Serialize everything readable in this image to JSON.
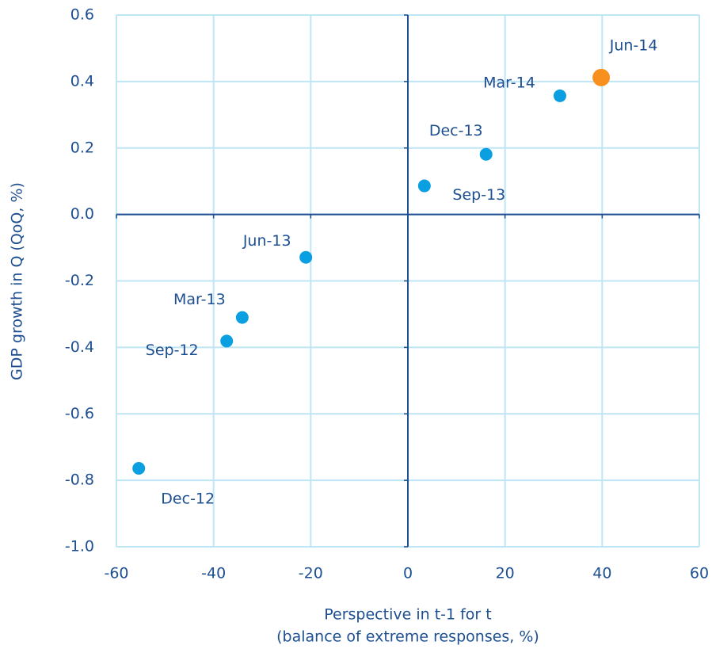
{
  "chart_data": {
    "type": "scatter",
    "x_label": [
      "Perspective in t-1 for t",
      "(balance of extreme responses, %)"
    ],
    "y_label": "GDP growth in Q (QoQ, %)",
    "points": [
      {
        "label": "Dec-12",
        "x": -55.4,
        "y": -0.764,
        "color": "#0a9fe0"
      },
      {
        "label": "Sep-12",
        "x": -37.3,
        "y": -0.381,
        "color": "#0a9fe0"
      },
      {
        "label": "Mar-13",
        "x": -34.1,
        "y": -0.31,
        "color": "#0a9fe0"
      },
      {
        "label": "Jun-13",
        "x": -21.0,
        "y": -0.129,
        "color": "#0a9fe0"
      },
      {
        "label": "Sep-13",
        "x": 3.4,
        "y": 0.086,
        "color": "#0a9fe0"
      },
      {
        "label": "Dec-13",
        "x": 16.1,
        "y": 0.181,
        "color": "#0a9fe0"
      },
      {
        "label": "Mar-14",
        "x": 31.3,
        "y": 0.357,
        "color": "#0a9fe0"
      },
      {
        "label": "Jun-14",
        "x": 39.8,
        "y": 0.412,
        "color": "#f7901e"
      }
    ],
    "xlim": [
      -60,
      60
    ],
    "xticks": [
      -60,
      -40,
      -20,
      0,
      20,
      40,
      60
    ],
    "ylim": [
      -1,
      0.6
    ],
    "yticks": [
      {
        "value": -1,
        "label": "-1.0"
      },
      -0.8,
      -0.6,
      -0.4,
      -0.2,
      {
        "value": 0,
        "label": "0.0"
      },
      0.2,
      0.4,
      0.6
    ],
    "grid": true
  }
}
